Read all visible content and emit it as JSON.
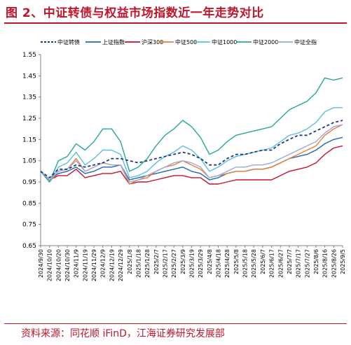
{
  "figure": {
    "title": "图 2、中证转债与权益市场指数近一年走势对比",
    "source": "资料来源：同花顺 iFinD，江海证券研究发展部"
  },
  "chart_data": {
    "type": "line",
    "ylim": [
      0.65,
      1.55
    ],
    "yticks": [
      "0.65",
      "0.75",
      "0.85",
      "0.95",
      "1.05",
      "1.15",
      "1.25",
      "1.35",
      "1.45",
      "1.55"
    ],
    "grid": false,
    "legend_position": "top",
    "x": [
      "2024/9/30",
      "2024/10/10",
      "2024/10/20",
      "2024/10/30",
      "2024/11/9",
      "2024/11/19",
      "2024/11/29",
      "2024/12/9",
      "2024/12/19",
      "2024/12/29",
      "2025/1/8",
      "2025/1/18",
      "2025/1/28",
      "2025/2/7",
      "2025/2/17",
      "2025/2/27",
      "2025/3/9",
      "2025/3/19",
      "2025/3/29",
      "2025/4/8",
      "2025/4/18",
      "2025/4/28",
      "2025/5/8",
      "2025/5/18",
      "2025/5/28",
      "2025/6/7",
      "2025/6/17",
      "2025/6/27",
      "2025/7/7",
      "2025/7/17",
      "2025/7/27",
      "2025/8/6",
      "2025/8/16",
      "2025/8/26",
      "2025/9/5"
    ],
    "series": [
      {
        "name": "中证转债",
        "color": "#1f3a78",
        "dashed": true,
        "values": [
          1.0,
          0.97,
          1.01,
          1.01,
          1.03,
          1.02,
          1.03,
          1.04,
          1.06,
          1.06,
          1.05,
          1.04,
          1.05,
          1.06,
          1.07,
          1.08,
          1.09,
          1.08,
          1.06,
          1.03,
          1.03,
          1.06,
          1.08,
          1.08,
          1.09,
          1.1,
          1.1,
          1.13,
          1.15,
          1.17,
          1.17,
          1.19,
          1.21,
          1.23,
          1.24
        ]
      },
      {
        "name": "上证指数",
        "color": "#1f66b5",
        "dashed": false,
        "values": [
          1.0,
          0.96,
          0.99,
          1.0,
          1.02,
          0.99,
          1.0,
          1.02,
          1.02,
          1.03,
          0.96,
          0.97,
          0.98,
          0.99,
          1.0,
          1.01,
          1.02,
          1.0,
          0.99,
          0.96,
          0.97,
          0.99,
          1.0,
          1.0,
          1.01,
          1.01,
          1.02,
          1.04,
          1.06,
          1.07,
          1.08,
          1.1,
          1.13,
          1.15,
          1.16
        ]
      },
      {
        "name": "沪深300",
        "color": "#c8102e",
        "dashed": false,
        "values": [
          1.0,
          0.96,
          0.98,
          0.98,
          1.01,
          0.97,
          0.98,
          0.99,
          0.99,
          1.0,
          0.94,
          0.95,
          0.95,
          0.96,
          0.97,
          0.98,
          0.98,
          0.97,
          0.97,
          0.94,
          0.94,
          0.95,
          0.96,
          0.96,
          0.96,
          0.96,
          0.96,
          0.98,
          1.0,
          1.01,
          1.02,
          1.04,
          1.08,
          1.11,
          1.12
        ]
      },
      {
        "name": "中证500",
        "color": "#ed7d31",
        "dashed": false,
        "values": [
          1.0,
          0.95,
          1.0,
          1.01,
          1.06,
          1.0,
          1.02,
          1.04,
          1.03,
          1.03,
          0.94,
          0.96,
          0.97,
          1.0,
          1.02,
          1.03,
          1.05,
          1.03,
          1.01,
          0.97,
          0.98,
          0.99,
          1.0,
          1.0,
          1.01,
          1.01,
          1.02,
          1.04,
          1.06,
          1.08,
          1.1,
          1.12,
          1.17,
          1.2,
          1.22
        ]
      },
      {
        "name": "中证1000",
        "color": "#5bbde6",
        "dashed": false,
        "values": [
          1.0,
          0.95,
          1.02,
          1.04,
          1.09,
          1.03,
          1.06,
          1.1,
          1.1,
          1.08,
          0.97,
          0.98,
          1.0,
          1.04,
          1.07,
          1.09,
          1.12,
          1.1,
          1.06,
          1.0,
          1.02,
          1.05,
          1.07,
          1.08,
          1.09,
          1.1,
          1.11,
          1.14,
          1.17,
          1.18,
          1.2,
          1.23,
          1.28,
          1.3,
          1.3
        ]
      },
      {
        "name": "中证2000",
        "color": "#24a79a",
        "dashed": false,
        "values": [
          1.0,
          0.95,
          1.05,
          1.07,
          1.13,
          1.1,
          1.14,
          1.2,
          1.2,
          1.14,
          1.0,
          1.02,
          1.06,
          1.12,
          1.17,
          1.2,
          1.24,
          1.21,
          1.16,
          1.08,
          1.1,
          1.14,
          1.17,
          1.18,
          1.19,
          1.2,
          1.21,
          1.25,
          1.29,
          1.31,
          1.33,
          1.37,
          1.44,
          1.43,
          1.44
        ]
      },
      {
        "name": "中证全指",
        "color": "#9aa9de",
        "dashed": false,
        "values": [
          1.0,
          0.96,
          1.0,
          1.01,
          1.05,
          1.0,
          1.02,
          1.04,
          1.03,
          1.03,
          0.95,
          0.96,
          0.98,
          1.0,
          1.02,
          1.04,
          1.05,
          1.04,
          1.02,
          0.97,
          0.98,
          1.0,
          1.02,
          1.02,
          1.03,
          1.03,
          1.04,
          1.06,
          1.08,
          1.1,
          1.12,
          1.14,
          1.18,
          1.21,
          1.22
        ]
      }
    ]
  }
}
